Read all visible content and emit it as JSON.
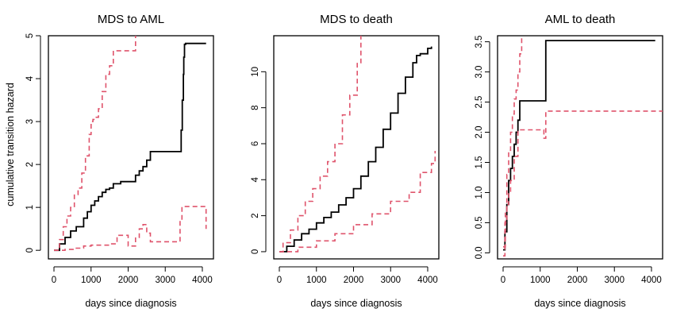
{
  "figure": {
    "ylabel": "cumulative transition hazard"
  },
  "colors": {
    "estimate": "#000000",
    "ci": "#df536b",
    "frame": "#000000"
  },
  "chart_data": [
    {
      "type": "line",
      "title": "MDS to AML",
      "xlabel": "days since diagnosis",
      "ylabel": "cumulative transition hazard",
      "xlim": [
        -150,
        4300
      ],
      "ylim": [
        -0.2,
        5
      ],
      "xticks": [
        0,
        1000,
        2000,
        3000,
        4000
      ],
      "yticks": [
        0,
        1,
        2,
        3,
        4,
        5
      ],
      "series": [
        {
          "name": "estimate",
          "style": "solid",
          "color": "#000000",
          "x": [
            0,
            150,
            300,
            450,
            600,
            750,
            800,
            900,
            1000,
            1100,
            1200,
            1300,
            1400,
            1500,
            1600,
            1800,
            2000,
            2100,
            2200,
            2300,
            2400,
            2500,
            2600,
            2800,
            3000,
            3200,
            3400,
            3430,
            3460,
            3490,
            3500,
            3520,
            3550,
            4000,
            4100
          ],
          "y": [
            0,
            0.15,
            0.3,
            0.45,
            0.55,
            0.55,
            0.75,
            0.9,
            1.05,
            1.15,
            1.25,
            1.35,
            1.42,
            1.45,
            1.55,
            1.6,
            1.6,
            1.6,
            1.75,
            1.85,
            1.95,
            2.1,
            2.3,
            2.3,
            2.3,
            2.3,
            2.3,
            2.8,
            3.5,
            4.1,
            4.5,
            4.8,
            4.82,
            4.82,
            4.82
          ]
        },
        {
          "name": "upper confidence band",
          "style": "dashed",
          "color": "#df536b",
          "x": [
            0,
            150,
            250,
            350,
            450,
            550,
            650,
            750,
            850,
            950,
            1000,
            1050,
            1100,
            1200,
            1300,
            1400,
            1500,
            1600,
            1700,
            1800,
            2000,
            2200
          ],
          "y": [
            0,
            0.25,
            0.55,
            0.8,
            1.0,
            1.3,
            1.45,
            1.8,
            2.2,
            2.7,
            3.0,
            3.05,
            3.1,
            3.3,
            3.7,
            4.1,
            4.3,
            4.65,
            4.65,
            4.65,
            4.65,
            5.0
          ]
        },
        {
          "name": "lower confidence band",
          "style": "dashed",
          "color": "#df536b",
          "x": [
            0,
            300,
            600,
            800,
            1000,
            1500,
            1700,
            2000,
            2200,
            2300,
            2400,
            2500,
            2600,
            3000,
            3300,
            3400,
            3450,
            3500,
            4000,
            4100
          ],
          "y": [
            0,
            0.02,
            0.05,
            0.1,
            0.12,
            0.15,
            0.35,
            0.1,
            0.3,
            0.5,
            0.6,
            0.4,
            0.2,
            0.2,
            0.2,
            0.7,
            1.02,
            1.02,
            1.02,
            0.5
          ]
        }
      ]
    },
    {
      "type": "line",
      "title": "MDS to death",
      "xlabel": "days since diagnosis",
      "ylabel": "",
      "xlim": [
        -150,
        4300
      ],
      "ylim": [
        -0.4,
        12
      ],
      "xticks": [
        0,
        1000,
        2000,
        3000,
        4000
      ],
      "yticks": [
        0,
        2,
        4,
        6,
        8,
        10
      ],
      "series": [
        {
          "name": "estimate",
          "style": "solid",
          "color": "#000000",
          "x": [
            0,
            200,
            400,
            600,
            800,
            1000,
            1200,
            1400,
            1600,
            1800,
            2000,
            2200,
            2400,
            2600,
            2800,
            3000,
            3200,
            3400,
            3600,
            3700,
            3800,
            4000,
            4100
          ],
          "y": [
            0,
            0.3,
            0.65,
            1.0,
            1.25,
            1.6,
            1.9,
            2.2,
            2.6,
            3.0,
            3.5,
            4.2,
            5.0,
            5.8,
            6.8,
            7.7,
            8.8,
            9.7,
            10.5,
            10.9,
            11.0,
            11.3,
            11.4
          ]
        },
        {
          "name": "upper confidence band",
          "style": "dashed",
          "color": "#df536b",
          "x": [
            0,
            100,
            300,
            500,
            700,
            900,
            1100,
            1300,
            1500,
            1700,
            1900,
            2100,
            2200
          ],
          "y": [
            0,
            0.5,
            1.2,
            2.0,
            2.8,
            3.5,
            4.2,
            5.0,
            6.0,
            7.6,
            8.7,
            10.5,
            12.0
          ]
        },
        {
          "name": "lower confidence band",
          "style": "dashed",
          "color": "#df536b",
          "x": [
            0,
            500,
            1000,
            1500,
            2000,
            2500,
            3000,
            3500,
            3800,
            4100,
            4200
          ],
          "y": [
            0,
            0.25,
            0.6,
            1.0,
            1.5,
            2.1,
            2.8,
            3.3,
            4.4,
            4.9,
            5.6
          ]
        }
      ]
    },
    {
      "type": "line",
      "title": "AML to death",
      "xlabel": "days since diagnosis",
      "ylabel": "",
      "xlim": [
        -150,
        4300
      ],
      "ylim": [
        -0.1,
        3.6
      ],
      "xticks": [
        0,
        1000,
        2000,
        3000,
        4000
      ],
      "yticks": [
        0.0,
        0.5,
        1.0,
        1.5,
        2.0,
        2.5,
        3.0,
        3.5
      ],
      "series": [
        {
          "name": "estimate",
          "style": "solid",
          "color": "#000000",
          "x": [
            0,
            50,
            100,
            150,
            200,
            250,
            300,
            350,
            400,
            450,
            800,
            1100,
            1150,
            4100
          ],
          "y": [
            0.05,
            0.35,
            0.8,
            1.2,
            1.4,
            1.6,
            1.8,
            2.0,
            2.2,
            2.52,
            2.52,
            2.52,
            3.52,
            3.52
          ]
        },
        {
          "name": "upper confidence band",
          "style": "dashed",
          "color": "#df536b",
          "x": [
            0,
            60,
            100,
            150,
            200,
            250,
            300,
            350,
            400,
            450,
            500
          ],
          "y": [
            0.1,
            0.7,
            1.3,
            1.7,
            2.0,
            2.3,
            2.55,
            2.7,
            3.0,
            3.3,
            3.6
          ]
        },
        {
          "name": "lower confidence band",
          "style": "dashed",
          "color": "#df536b",
          "x": [
            0,
            50,
            100,
            150,
            200,
            300,
            400,
            500,
            1000,
            1100,
            1150,
            4300
          ],
          "y": [
            -0.05,
            0.5,
            0.8,
            1.0,
            1.2,
            1.6,
            2.04,
            2.04,
            2.04,
            1.9,
            2.35,
            2.35
          ]
        }
      ]
    }
  ]
}
